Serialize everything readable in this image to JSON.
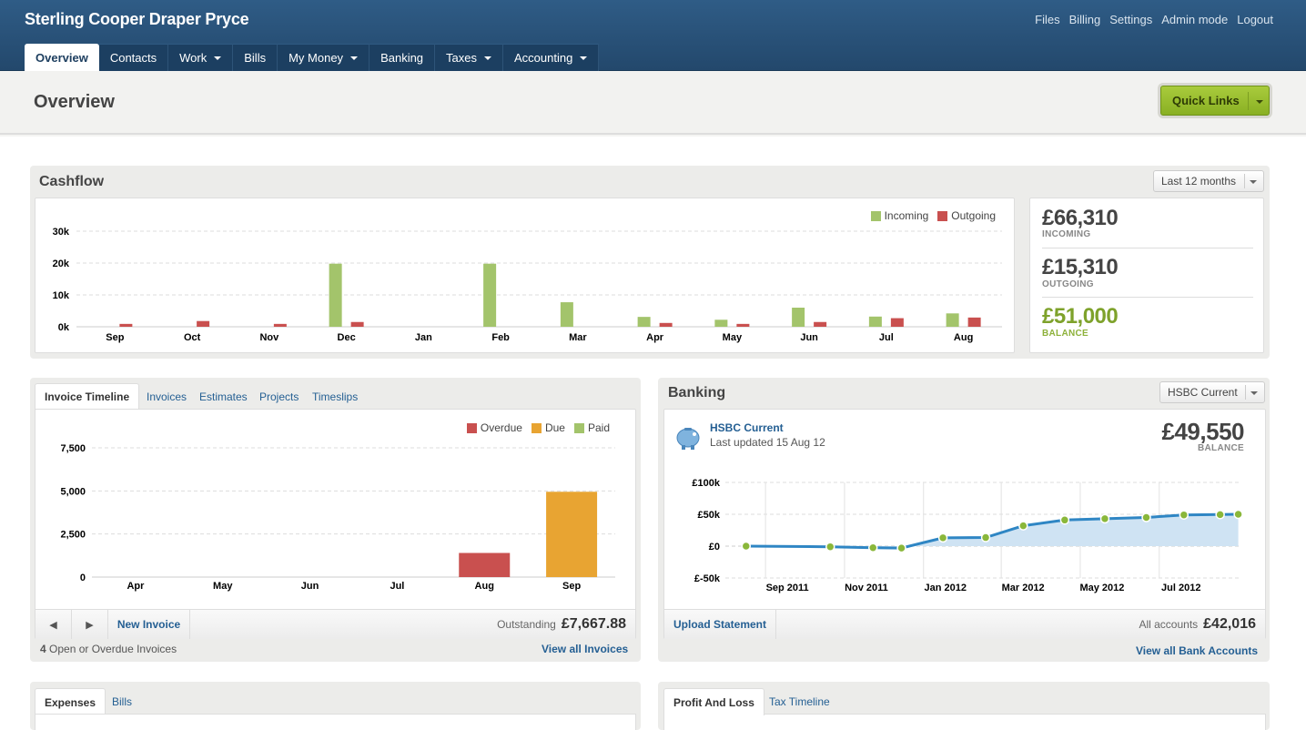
{
  "header": {
    "brand": "Sterling Cooper Draper Pryce",
    "links": [
      "Files",
      "Billing",
      "Settings",
      "Admin mode",
      "Logout"
    ]
  },
  "nav": [
    {
      "label": "Overview",
      "dropdown": false
    },
    {
      "label": "Contacts",
      "dropdown": false
    },
    {
      "label": "Work",
      "dropdown": true
    },
    {
      "label": "Bills",
      "dropdown": false
    },
    {
      "label": "My Money",
      "dropdown": true
    },
    {
      "label": "Banking",
      "dropdown": false
    },
    {
      "label": "Taxes",
      "dropdown": true
    },
    {
      "label": "Accounting",
      "dropdown": true
    }
  ],
  "page": {
    "title": "Overview",
    "quick_links": "Quick Links"
  },
  "cashflow": {
    "title": "Cashflow",
    "period": "Last 12 months",
    "summary": {
      "incoming": "£66,310",
      "incoming_label": "INCOMING",
      "outgoing": "£15,310",
      "outgoing_label": "OUTGOING",
      "balance": "£51,000",
      "balance_label": "BALANCE"
    }
  },
  "invoices": {
    "tabs": [
      "Invoice Timeline",
      "Invoices",
      "Estimates",
      "Projects",
      "Timeslips"
    ],
    "new_invoice": "New Invoice",
    "outstanding_label": "Outstanding",
    "outstanding_value": "£7,667.88",
    "open_count": "4",
    "open_text": "Open or Overdue Invoices",
    "view_all": "View all Invoices"
  },
  "banking": {
    "title": "Banking",
    "account_select": "HSBC Current",
    "account_name": "HSBC Current",
    "last_updated": "Last updated 15 Aug 12",
    "balance": "£49,550",
    "balance_label": "BALANCE",
    "upload": "Upload Statement",
    "all_accounts_label": "All accounts",
    "all_accounts_value": "£42,016",
    "view_all": "View all Bank Accounts"
  },
  "expenses": {
    "tabs": [
      "Expenses",
      "Bills"
    ]
  },
  "profit": {
    "tabs": [
      "Profit And Loss",
      "Tax Timeline"
    ]
  },
  "colors": {
    "incoming": "#a3c46b",
    "outgoing": "#c9504f",
    "overdue": "#c9504f",
    "due": "#e8a432",
    "paid": "#a3c46b",
    "bank_line": "#2f86c4",
    "bank_fill": "#cfe3f3",
    "bank_point": "#8ab73a"
  },
  "chart_data": [
    {
      "type": "bar",
      "title": "Cashflow",
      "categories": [
        "Sep",
        "Oct",
        "Nov",
        "Dec",
        "Jan",
        "Feb",
        "Mar",
        "Apr",
        "May",
        "Jun",
        "Jul",
        "Aug"
      ],
      "yticks": [
        "0k",
        "10k",
        "20k",
        "30k"
      ],
      "ylim": [
        0,
        30000
      ],
      "legend": "top-right",
      "series": [
        {
          "name": "Incoming",
          "values": [
            0,
            0,
            0,
            19800,
            0,
            19800,
            7700,
            3100,
            2200,
            6000,
            3200,
            4200
          ]
        },
        {
          "name": "Outgoing",
          "values": [
            900,
            1800,
            900,
            1500,
            0,
            0,
            0,
            1200,
            900,
            1500,
            2700,
            2900
          ]
        }
      ]
    },
    {
      "type": "bar",
      "title": "Invoice Timeline",
      "categories": [
        "Apr",
        "May",
        "Jun",
        "Jul",
        "Aug",
        "Sep"
      ],
      "yticks": [
        "0",
        "2,500",
        "5,000",
        "7,500"
      ],
      "ylim": [
        0,
        7500
      ],
      "legend": "top-right",
      "series": [
        {
          "name": "Overdue",
          "values": [
            0,
            0,
            0,
            0,
            1400,
            0
          ]
        },
        {
          "name": "Due",
          "values": [
            0,
            0,
            0,
            0,
            0,
            4950
          ]
        },
        {
          "name": "Paid",
          "values": [
            0,
            0,
            0,
            0,
            0,
            0
          ]
        }
      ]
    },
    {
      "type": "area",
      "title": "HSBC Current",
      "xticks": [
        "Sep 2011",
        "Nov 2011",
        "Jan 2012",
        "Mar 2012",
        "May 2012",
        "Jul 2012"
      ],
      "yticks": [
        "£-50k",
        "£0",
        "£50k",
        "£100k"
      ],
      "ylim": [
        -50000,
        100000
      ],
      "series": [
        {
          "name": "",
          "x": [
            "2011-08-17",
            "2011-10-21",
            "2011-11-23",
            "2011-12-15",
            "2012-01-16",
            "2012-02-18",
            "2012-03-18",
            "2012-04-19",
            "2012-05-20",
            "2012-06-21",
            "2012-07-20",
            "2012-08-17",
            "2012-08-31"
          ],
          "values": [
            0,
            -1000,
            -2500,
            -3000,
            13000,
            13500,
            32000,
            41000,
            43000,
            45000,
            49000,
            49500,
            50000
          ]
        }
      ]
    }
  ]
}
